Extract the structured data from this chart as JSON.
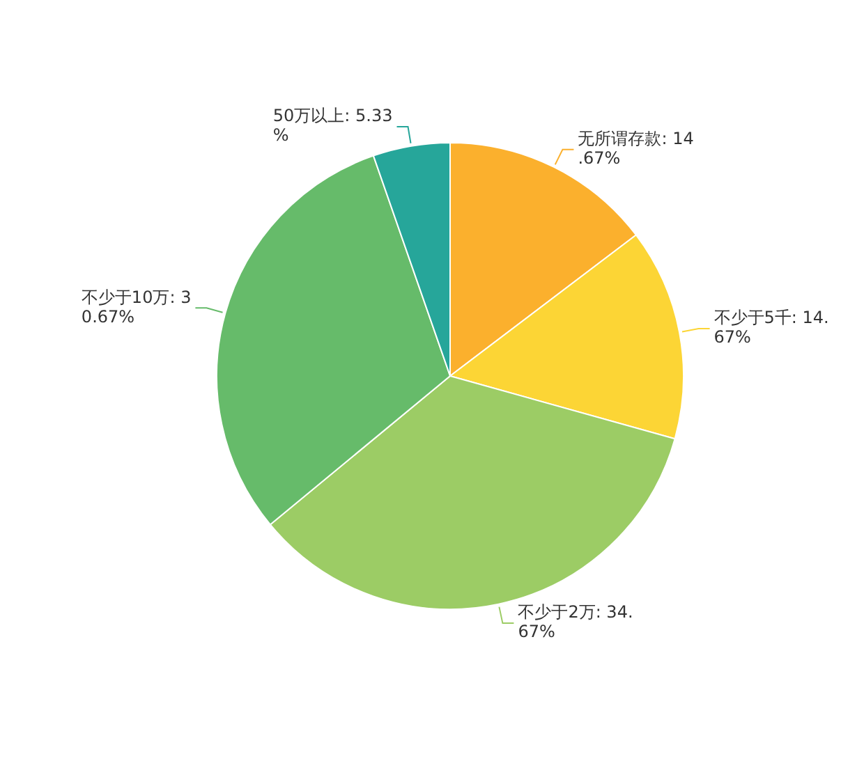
{
  "chart_data": {
    "type": "pie",
    "categories": [
      "无所谓存款",
      "不少于5千",
      "不少于2万",
      "不少于10万",
      "50万以上"
    ],
    "values": [
      14.67,
      14.67,
      34.67,
      30.67,
      5.33
    ],
    "value_labels": [
      "14.67%",
      "14.67%",
      "34.67%",
      "30.67%",
      "5.33%"
    ],
    "colors": [
      "#fbb02d",
      "#fcd535",
      "#9ccc65",
      "#66bb6a",
      "#26a69a"
    ],
    "legend": false
  }
}
